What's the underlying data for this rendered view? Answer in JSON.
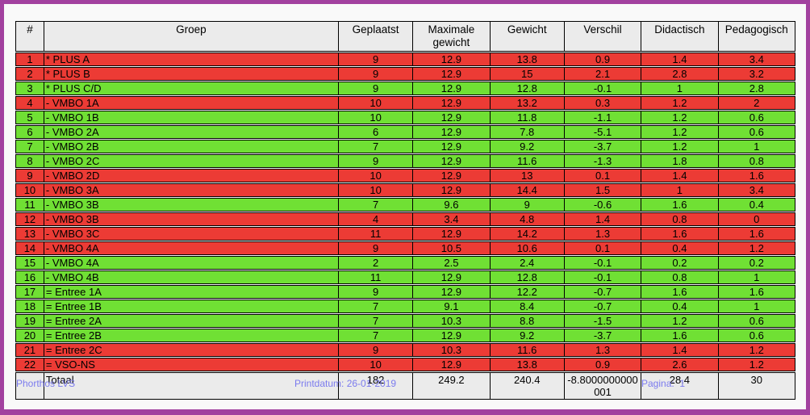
{
  "table": {
    "headers": {
      "num": "#",
      "groep": "Groep",
      "geplaatst": "Geplaatst",
      "max_gewicht": "Maximale gewicht",
      "gewicht": "Gewicht",
      "verschil": "Verschil",
      "didactisch": "Didactisch",
      "pedagogisch": "Pedagogisch"
    },
    "rows": [
      {
        "num": "1",
        "groep": "* PLUS A",
        "geplaatst": "9",
        "max_gewicht": "12.9",
        "gewicht": "13.8",
        "verschil": "0.9",
        "didactisch": "1.4",
        "pedagogisch": "3.4",
        "color": "red"
      },
      {
        "num": "2",
        "groep": "* PLUS B",
        "geplaatst": "9",
        "max_gewicht": "12.9",
        "gewicht": "15",
        "verschil": "2.1",
        "didactisch": "2.8",
        "pedagogisch": "3.2",
        "color": "red"
      },
      {
        "num": "3",
        "groep": "* PLUS C/D",
        "geplaatst": "9",
        "max_gewicht": "12.9",
        "gewicht": "12.8",
        "verschil": "-0.1",
        "didactisch": "1",
        "pedagogisch": "2.8",
        "color": "green"
      },
      {
        "num": "4",
        "groep": "- VMBO 1A",
        "geplaatst": "10",
        "max_gewicht": "12.9",
        "gewicht": "13.2",
        "verschil": "0.3",
        "didactisch": "1.2",
        "pedagogisch": "2",
        "color": "red"
      },
      {
        "num": "5",
        "groep": "- VMBO 1B",
        "geplaatst": "10",
        "max_gewicht": "12.9",
        "gewicht": "11.8",
        "verschil": "-1.1",
        "didactisch": "1.2",
        "pedagogisch": "0.6",
        "color": "green"
      },
      {
        "num": "6",
        "groep": "- VMBO 2A",
        "geplaatst": "6",
        "max_gewicht": "12.9",
        "gewicht": "7.8",
        "verschil": "-5.1",
        "didactisch": "1.2",
        "pedagogisch": "0.6",
        "color": "green"
      },
      {
        "num": "7",
        "groep": "- VMBO 2B",
        "geplaatst": "7",
        "max_gewicht": "12.9",
        "gewicht": "9.2",
        "verschil": "-3.7",
        "didactisch": "1.2",
        "pedagogisch": "1",
        "color": "green"
      },
      {
        "num": "8",
        "groep": "- VMBO 2C",
        "geplaatst": "9",
        "max_gewicht": "12.9",
        "gewicht": "11.6",
        "verschil": "-1.3",
        "didactisch": "1.8",
        "pedagogisch": "0.8",
        "color": "green"
      },
      {
        "num": "9",
        "groep": "- VMBO 2D",
        "geplaatst": "10",
        "max_gewicht": "12.9",
        "gewicht": "13",
        "verschil": "0.1",
        "didactisch": "1.4",
        "pedagogisch": "1.6",
        "color": "red"
      },
      {
        "num": "10",
        "groep": "- VMBO 3A",
        "geplaatst": "10",
        "max_gewicht": "12.9",
        "gewicht": "14.4",
        "verschil": "1.5",
        "didactisch": "1",
        "pedagogisch": "3.4",
        "color": "red"
      },
      {
        "num": "11",
        "groep": "- VMBO 3B",
        "geplaatst": "7",
        "max_gewicht": "9.6",
        "gewicht": "9",
        "verschil": "-0.6",
        "didactisch": "1.6",
        "pedagogisch": "0.4",
        "color": "green"
      },
      {
        "num": "12",
        "groep": "- VMBO 3B",
        "geplaatst": "4",
        "max_gewicht": "3.4",
        "gewicht": "4.8",
        "verschil": "1.4",
        "didactisch": "0.8",
        "pedagogisch": "0",
        "color": "red"
      },
      {
        "num": "13",
        "groep": "- VMBO 3C",
        "geplaatst": "11",
        "max_gewicht": "12.9",
        "gewicht": "14.2",
        "verschil": "1.3",
        "didactisch": "1.6",
        "pedagogisch": "1.6",
        "color": "red"
      },
      {
        "num": "14",
        "groep": "- VMBO 4A",
        "geplaatst": "9",
        "max_gewicht": "10.5",
        "gewicht": "10.6",
        "verschil": "0.1",
        "didactisch": "0.4",
        "pedagogisch": "1.2",
        "color": "red"
      },
      {
        "num": "15",
        "groep": "- VMBO 4A",
        "geplaatst": "2",
        "max_gewicht": "2.5",
        "gewicht": "2.4",
        "verschil": "-0.1",
        "didactisch": "0.2",
        "pedagogisch": "0.2",
        "color": "green"
      },
      {
        "num": "16",
        "groep": "- VMBO 4B",
        "geplaatst": "11",
        "max_gewicht": "12.9",
        "gewicht": "12.8",
        "verschil": "-0.1",
        "didactisch": "0.8",
        "pedagogisch": "1",
        "color": "green"
      },
      {
        "num": "17",
        "groep": "= Entree 1A",
        "geplaatst": "9",
        "max_gewicht": "12.9",
        "gewicht": "12.2",
        "verschil": "-0.7",
        "didactisch": "1.6",
        "pedagogisch": "1.6",
        "color": "green"
      },
      {
        "num": "18",
        "groep": "= Entree 1B",
        "geplaatst": "7",
        "max_gewicht": "9.1",
        "gewicht": "8.4",
        "verschil": "-0.7",
        "didactisch": "0.4",
        "pedagogisch": "1",
        "color": "green"
      },
      {
        "num": "19",
        "groep": "= Entree 2A",
        "geplaatst": "7",
        "max_gewicht": "10.3",
        "gewicht": "8.8",
        "verschil": "-1.5",
        "didactisch": "1.2",
        "pedagogisch": "0.6",
        "color": "green"
      },
      {
        "num": "20",
        "groep": "= Entree 2B",
        "geplaatst": "7",
        "max_gewicht": "12.9",
        "gewicht": "9.2",
        "verschil": "-3.7",
        "didactisch": "1.6",
        "pedagogisch": "0.6",
        "color": "green"
      },
      {
        "num": "21",
        "groep": "= Entree 2C",
        "geplaatst": "9",
        "max_gewicht": "10.3",
        "gewicht": "11.6",
        "verschil": "1.3",
        "didactisch": "1.4",
        "pedagogisch": "1.2",
        "color": "red"
      },
      {
        "num": "22",
        "groep": "= VSO-NS",
        "geplaatst": "10",
        "max_gewicht": "12.9",
        "gewicht": "13.8",
        "verschil": "0.9",
        "didactisch": "2.6",
        "pedagogisch": "1.2",
        "color": "red"
      }
    ],
    "total": {
      "label": "Totaal",
      "geplaatst": "182",
      "max_gewicht": "249.2",
      "gewicht": "240.4",
      "verschil": "-8.8000000000001",
      "didactisch": "28.4",
      "pedagogisch": "30"
    }
  },
  "footer": {
    "app_name": "Phorthos LVS",
    "print_date_label": "Printdatum: 26-01-2019",
    "page_label": "Pagina:  1"
  },
  "colors": {
    "row_red": "#ec3b35",
    "row_green": "#70e034",
    "header_bg": "#ebebeb",
    "frame": "#a2419f",
    "footer_text": "#7b7bee"
  }
}
